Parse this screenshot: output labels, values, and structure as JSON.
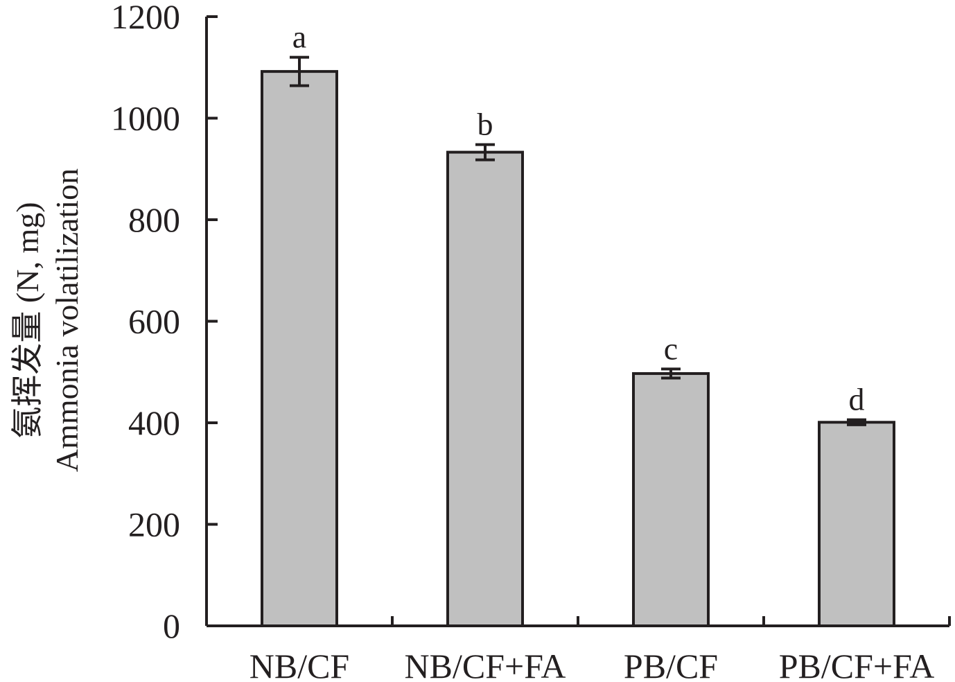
{
  "chart_data": {
    "type": "bar",
    "categories": [
      "NB/CF",
      "NB/CF+FA",
      "PB/CF",
      "PB/CF+FA"
    ],
    "values": [
      1092,
      933,
      497,
      401
    ],
    "errors": [
      28,
      15,
      9,
      5
    ],
    "significance_letters": [
      "a",
      "b",
      "c",
      "d"
    ],
    "ylabel_line1": "氨挥发量 (N, mg)",
    "ylabel_line2": "Ammonia volatilization",
    "xlabel": "",
    "title": "",
    "ylim": [
      0,
      1200
    ],
    "yticks": [
      0,
      200,
      400,
      600,
      800,
      1000,
      1200
    ],
    "grid": false,
    "legend": "none",
    "bar_color": "#c0c0c0",
    "line_color": "#231f20"
  }
}
